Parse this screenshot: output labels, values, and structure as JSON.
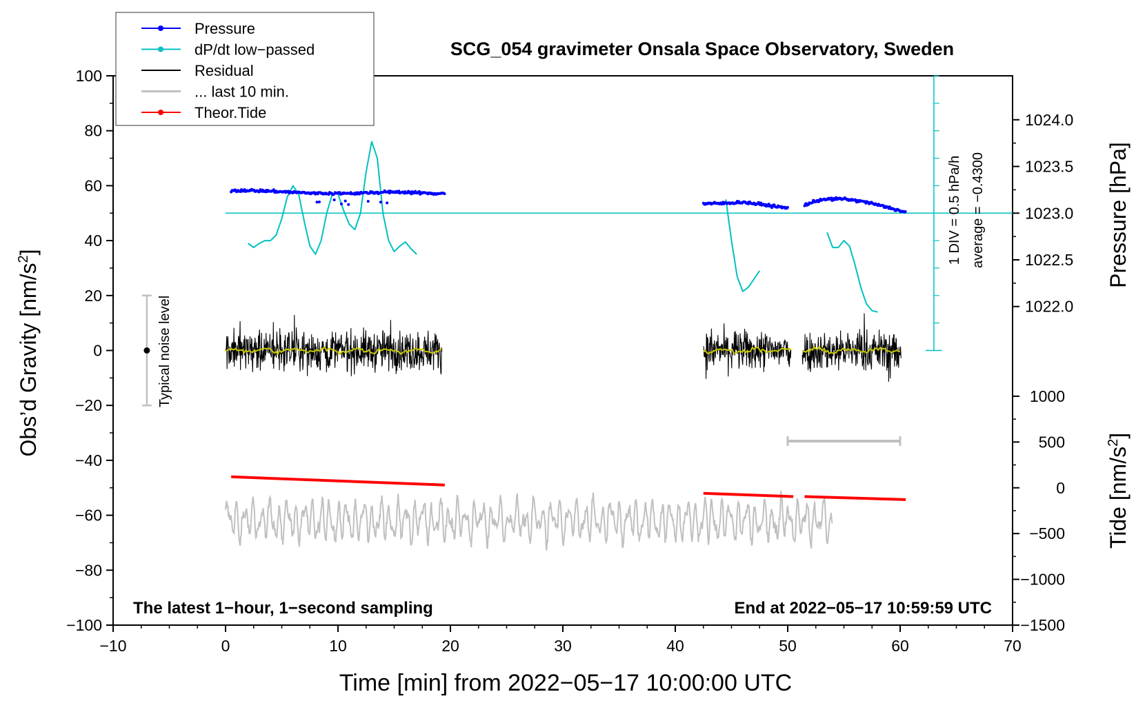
{
  "chart_data": {
    "type": "line",
    "title": "SCG_054 gravimeter Onsala Space Observatory, Sweden",
    "xlabel": "Time [min] from 2022−05−17 10:00:00 UTC",
    "ylabel_left": "Obs’d Gravity [nm/s²]",
    "ylabel_left_text": "Obs’d Gravity [nm/s",
    "ylabel_left_sup": "2",
    "ylabel_left_close": "]",
    "ylabel_right_top": "Pressure [hPa]",
    "ylabel_right_bottom": "Tide [nm/s²]",
    "ylabel_right_bottom_text": "Tide [nm/s",
    "ylabel_right_bottom_sup": "2",
    "ylabel_right_bottom_close": "]",
    "xlim": [
      -10,
      70
    ],
    "ylim": [
      -100,
      100
    ],
    "pressure_axis": {
      "ticks": [
        "1022.0",
        "1022.5",
        "1023.0",
        "1023.5",
        "1024.0"
      ],
      "values": [
        1022.0,
        1022.5,
        1023.0,
        1023.5,
        1024.0
      ]
    },
    "tide_axis": {
      "ticks": [
        "−1500",
        "−1000",
        "−500",
        "0",
        "500",
        "1000"
      ],
      "values": [
        -1500,
        -1000,
        -500,
        0,
        500,
        1000
      ]
    },
    "x_ticks": [
      "−10",
      "0",
      "10",
      "20",
      "30",
      "40",
      "50",
      "60",
      "70"
    ],
    "x_tick_values": [
      -10,
      0,
      10,
      20,
      30,
      40,
      50,
      60,
      70
    ],
    "y_ticks": [
      "−100",
      "−80",
      "−60",
      "−40",
      "−20",
      "0",
      "20",
      "40",
      "60",
      "80",
      "100"
    ],
    "y_tick_values": [
      -100,
      -80,
      -60,
      -40,
      -20,
      0,
      20,
      40,
      60,
      80,
      100
    ],
    "legend": [
      {
        "name": "Pressure",
        "color": "#0000ff",
        "marker": true
      },
      {
        "name": "dP/dt low−passed",
        "color": "#00c0c0",
        "marker": true
      },
      {
        "name": "Residual",
        "color": "#000000",
        "marker": false
      },
      {
        "name": "... last 10 min.",
        "color": "#c0c0c0",
        "marker": false
      },
      {
        "name": "Theor.Tide",
        "color": "#ff0000",
        "marker": true
      }
    ],
    "annotations": {
      "bottom_left": "The latest 1−hour, 1−second sampling",
      "bottom_right": "End at 2022−05−17 10:59:59 UTC",
      "noise_label": "Typical noise level",
      "dp_scale": "1 DIV = 0.5 hPa/h",
      "dp_average": "average = −0.4300"
    },
    "noise_bar": {
      "x": -7,
      "y": 0,
      "range": [
        -20,
        20
      ]
    },
    "dpdt_axis": {
      "x": 63,
      "y_range": [
        0,
        100
      ],
      "baseline": 50
    },
    "last10_bar": {
      "x_range": [
        50,
        60
      ],
      "y": -33
    },
    "series": [
      {
        "name": "Pressure",
        "color": "#0000ff",
        "segments": [
          {
            "x": [
              0.5,
              2,
              4,
              6,
              8,
              10,
              12,
              14,
              16,
              18,
              19.5
            ],
            "y": [
              58.2,
              58.3,
              58,
              57.6,
              57.2,
              57.2,
              57.3,
              57.6,
              57.7,
              57.2,
              57.2
            ]
          },
          {
            "x": [
              42.5,
              44,
              46,
              48,
              50
            ],
            "y": [
              53.5,
              53.5,
              54,
              53,
              51.8
            ]
          },
          {
            "x": [
              51.5,
              53,
              55,
              57,
              59,
              60.5
            ],
            "y": [
              53,
              55,
              55.2,
              54,
              52,
              50.3
            ]
          }
        ]
      },
      {
        "name": "dP/dt low−passed",
        "color": "#00c0c0",
        "segments": [
          {
            "x": [
              2.0,
              2.5,
              3.0,
              3.5,
              4.0,
              4.5,
              5.0,
              5.5,
              6.0,
              6.5,
              7.0,
              7.5,
              8.0,
              8.5,
              9.0,
              9.5,
              10.0,
              10.5,
              11.0,
              11.5,
              12.0,
              12.5,
              13.0,
              13.5,
              14.0,
              14.5,
              15.0,
              15.5,
              16.0,
              16.5,
              17.0
            ],
            "y": [
              39,
              37.5,
              39,
              40,
              40,
              42,
              48,
              56,
              60,
              57,
              47,
              38,
              35,
              40,
              50,
              57,
              57,
              51,
              46,
              44,
              50,
              65,
              76,
              70,
              50,
              40,
              36,
              38,
              39.5,
              37,
              35
            ]
          },
          {
            "x": [
              44.5,
              45.0,
              45.5,
              46.0,
              46.5,
              47.0,
              47.5
            ],
            "y": [
              55,
              40,
              27,
              21.5,
              23,
              26,
              29
            ]
          },
          {
            "x": [
              53.5,
              54.0,
              54.5,
              55.0,
              55.5,
              56.0,
              56.5,
              57.0,
              57.5,
              58.0
            ],
            "y": [
              43,
              37.5,
              37.5,
              40,
              38,
              31,
              23,
              17,
              14.5,
              14
            ]
          }
        ]
      },
      {
        "name": "Residual",
        "color": "#000000",
        "noise_amplitude": 8,
        "segments": [
          {
            "x": [
              0,
              19.3
            ]
          },
          {
            "x": [
              42.5,
              50.3
            ]
          },
          {
            "x": [
              51.3,
              60.1
            ]
          }
        ]
      },
      {
        "name": "Residual smoothed",
        "color": "#c8c800",
        "segments": [
          {
            "x": [
              0,
              19.3
            ]
          },
          {
            "x": [
              42.5,
              50.3
            ]
          },
          {
            "x": [
              51.3,
              60.1
            ]
          }
        ]
      },
      {
        "name": "... last 10 min.",
        "color": "#c0c0c0",
        "x_range": [
          0,
          54
        ],
        "center": -62,
        "amplitude": 7
      },
      {
        "name": "Theor.Tide",
        "color": "#ff0000",
        "segments": [
          {
            "x": [
              0.5,
              19.5
            ],
            "y": [
              -46,
              -49
            ]
          },
          {
            "x": [
              42.5,
              50.5
            ],
            "y": [
              -52,
              -53.2
            ]
          },
          {
            "x": [
              51.5,
              60.5
            ],
            "y": [
              -53.2,
              -54.3
            ]
          }
        ]
      }
    ]
  }
}
